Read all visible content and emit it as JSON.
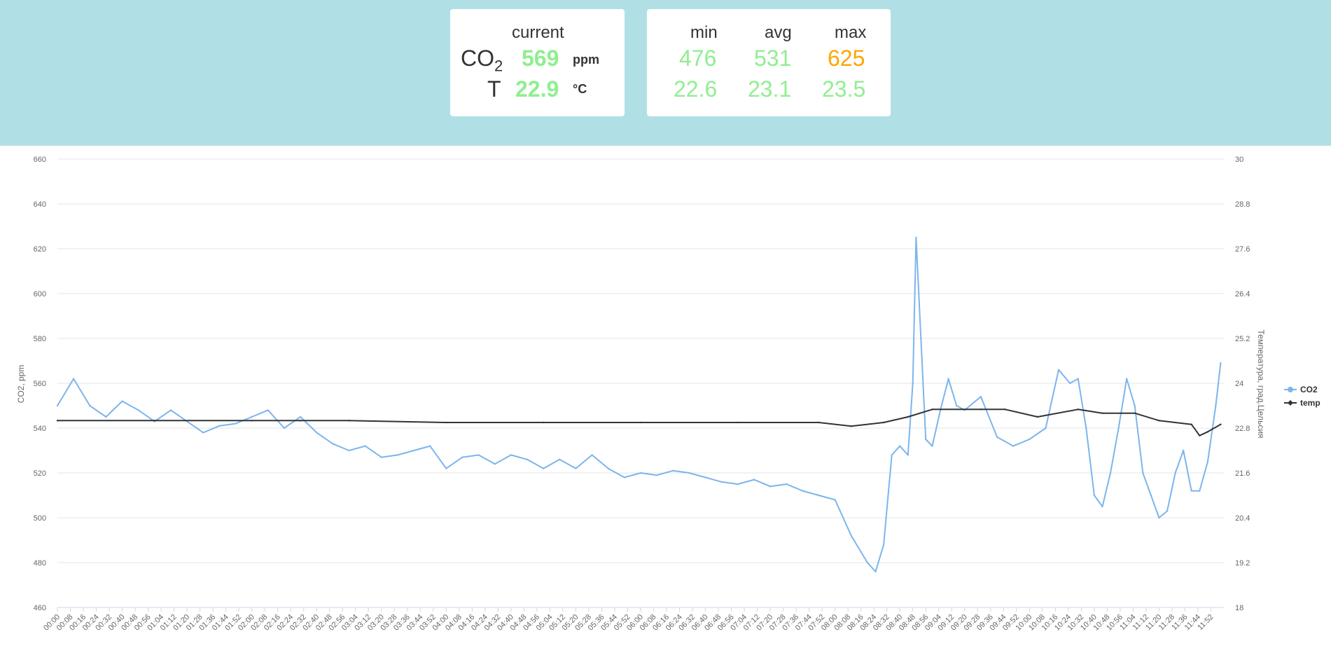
{
  "current": {
    "title": "current",
    "co2_label": "CO",
    "co2_sub": "2",
    "co2_value": "569",
    "co2_unit": "ppm",
    "t_label": "T",
    "t_value": "22.9",
    "t_unit": "°C"
  },
  "stats": {
    "min_label": "min",
    "avg_label": "avg",
    "max_label": "max",
    "co2_min": "476",
    "co2_avg": "531",
    "co2_max": "625",
    "t_min": "22.6",
    "t_avg": "23.1",
    "t_max": "23.5"
  },
  "colors": {
    "header_bg": "#b0e0e6",
    "good": "#90ee90",
    "warn": "#ffa500",
    "co2_series": "#7cb5ec",
    "temp_series": "#333333"
  },
  "chart_data": {
    "type": "line",
    "ylabel": "CO2, ppm",
    "y2label": "Температура, град.Цельсия",
    "ylim": [
      460,
      660
    ],
    "y2lim": [
      18,
      30
    ],
    "yticks": [
      "460",
      "480",
      "500",
      "520",
      "540",
      "560",
      "580",
      "600",
      "620",
      "640",
      "660"
    ],
    "y2ticks": [
      "18",
      "19.2",
      "20.4",
      "21.6",
      "22.8",
      "24",
      "25.2",
      "26.4",
      "27.6",
      "28.8",
      "30"
    ],
    "xticks": [
      "00:00",
      "00:08",
      "00:16",
      "00:24",
      "00:32",
      "00:40",
      "00:48",
      "00:56",
      "01:04",
      "01:12",
      "01:20",
      "01:28",
      "01:36",
      "01:44",
      "01:52",
      "02:00",
      "02:08",
      "02:16",
      "02:24",
      "02:32",
      "02:40",
      "02:48",
      "02:56",
      "03:04",
      "03:12",
      "03:20",
      "03:28",
      "03:36",
      "03:44",
      "03:52",
      "04:00",
      "04:08",
      "04:16",
      "04:24",
      "04:32",
      "04:40",
      "04:48",
      "04:56",
      "05:04",
      "05:12",
      "05:20",
      "05:28",
      "05:36",
      "05:44",
      "05:52",
      "06:00",
      "06:08",
      "06:16",
      "06:24",
      "06:32",
      "06:40",
      "06:48",
      "06:56",
      "07:04",
      "07:12",
      "07:20",
      "07:28",
      "07:36",
      "07:44",
      "07:52",
      "08:00",
      "08:08",
      "08:16",
      "08:24",
      "08:32",
      "08:40",
      "08:48",
      "08:56",
      "09:04",
      "09:12",
      "09:20",
      "09:28",
      "09:36",
      "09:44",
      "09:52",
      "10:00",
      "10:08",
      "10:16",
      "10:24",
      "10:32",
      "10:40",
      "10:48",
      "10:56",
      "11:04",
      "11:12",
      "11:20",
      "11:28",
      "11:36",
      "11:44",
      "11:52"
    ],
    "legend_position": "right",
    "grid": true,
    "series": [
      {
        "name": "CO2",
        "axis": "left",
        "x": [
          "00:00",
          "00:10",
          "00:20",
          "00:30",
          "00:40",
          "00:50",
          "01:00",
          "01:10",
          "01:20",
          "01:30",
          "01:40",
          "01:50",
          "02:00",
          "02:10",
          "02:20",
          "02:30",
          "02:40",
          "02:50",
          "03:00",
          "03:10",
          "03:20",
          "03:30",
          "03:40",
          "03:50",
          "04:00",
          "04:10",
          "04:20",
          "04:30",
          "04:40",
          "04:50",
          "05:00",
          "05:10",
          "05:20",
          "05:30",
          "05:40",
          "05:50",
          "06:00",
          "06:10",
          "06:20",
          "06:30",
          "06:40",
          "06:50",
          "07:00",
          "07:10",
          "07:20",
          "07:30",
          "07:40",
          "07:50",
          "08:00",
          "08:10",
          "08:20",
          "08:25",
          "08:30",
          "08:35",
          "08:40",
          "08:45",
          "08:48",
          "08:50",
          "08:53",
          "08:56",
          "09:00",
          "09:05",
          "09:10",
          "09:15",
          "09:20",
          "09:30",
          "09:40",
          "09:50",
          "10:00",
          "10:10",
          "10:18",
          "10:25",
          "10:30",
          "10:35",
          "10:40",
          "10:45",
          "10:50",
          "10:55",
          "11:00",
          "11:05",
          "11:10",
          "11:15",
          "11:20",
          "11:25",
          "11:30",
          "11:35",
          "11:40",
          "11:45",
          "11:50",
          "11:55",
          "11:58"
        ],
        "values": [
          550,
          562,
          550,
          545,
          552,
          548,
          543,
          548,
          543,
          538,
          541,
          542,
          545,
          548,
          540,
          545,
          538,
          533,
          530,
          532,
          527,
          528,
          530,
          532,
          522,
          527,
          528,
          524,
          528,
          526,
          522,
          526,
          522,
          528,
          522,
          518,
          520,
          519,
          521,
          520,
          518,
          516,
          515,
          517,
          514,
          515,
          512,
          510,
          508,
          492,
          480,
          476,
          488,
          528,
          532,
          528,
          560,
          625,
          580,
          535,
          532,
          548,
          562,
          550,
          548,
          554,
          536,
          532,
          535,
          540,
          566,
          560,
          562,
          540,
          510,
          505,
          520,
          540,
          562,
          550,
          520,
          510,
          500,
          503,
          520,
          530,
          512,
          512,
          525,
          550,
          569
        ]
      },
      {
        "name": "temp",
        "axis": "right",
        "x": [
          "00:00",
          "01:00",
          "02:00",
          "02:30",
          "03:00",
          "04:00",
          "05:00",
          "06:00",
          "07:00",
          "07:50",
          "08:10",
          "08:30",
          "08:45",
          "09:00",
          "09:30",
          "09:45",
          "10:05",
          "10:30",
          "10:45",
          "11:05",
          "11:20",
          "11:40",
          "11:45",
          "11:50",
          "11:58"
        ],
        "values": [
          23.0,
          23.0,
          23.0,
          23.0,
          23.0,
          22.95,
          22.95,
          22.95,
          22.95,
          22.95,
          22.85,
          22.95,
          23.1,
          23.3,
          23.3,
          23.3,
          23.1,
          23.3,
          23.2,
          23.2,
          23.0,
          22.9,
          22.6,
          22.7,
          22.9
        ]
      }
    ]
  }
}
